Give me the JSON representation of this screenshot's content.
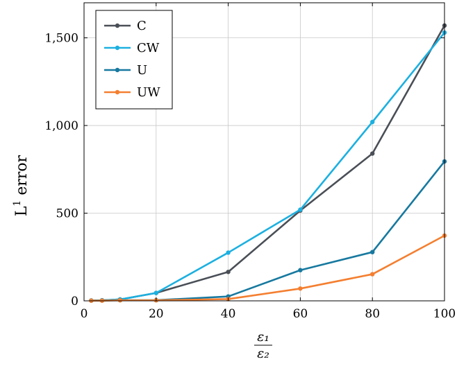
{
  "chart_data": {
    "type": "line",
    "title": "",
    "xlabel": {
      "numerator": "ε₁",
      "denominator": "ε₂"
    },
    "ylabel": "L¹ error",
    "ylabel_main": "L",
    "ylabel_sup": "1",
    "ylabel_rest": " error",
    "xlim": [
      0,
      100
    ],
    "ylim": [
      0,
      1700
    ],
    "xticks": [
      0,
      20,
      40,
      60,
      80,
      100
    ],
    "yticks": [
      0,
      500,
      1000,
      1500
    ],
    "xtick_labels": [
      "0",
      "20",
      "40",
      "60",
      "80",
      "100"
    ],
    "ytick_labels": [
      "0",
      "500",
      "1,000",
      "1,500"
    ],
    "grid": true,
    "legend_position": "top-left",
    "x": [
      2,
      5,
      10,
      20,
      40,
      60,
      80,
      100
    ],
    "series": [
      {
        "name": "C",
        "color": "#4a4f57",
        "values": [
          2,
          3,
          8,
          45,
          165,
          515,
          840,
          1570
        ]
      },
      {
        "name": "CW",
        "color": "#1cb0e0",
        "values": [
          2,
          3,
          8,
          45,
          275,
          520,
          1020,
          1530
        ]
      },
      {
        "name": "U",
        "color": "#17799f",
        "values": [
          1,
          2,
          4,
          4,
          25,
          175,
          278,
          795
        ]
      },
      {
        "name": "UW",
        "color": "#f47f30",
        "values": [
          1,
          1,
          3,
          3,
          10,
          70,
          152,
          372
        ]
      }
    ]
  }
}
